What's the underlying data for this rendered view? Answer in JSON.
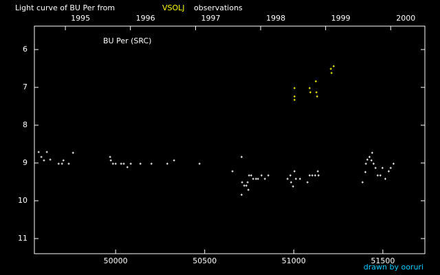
{
  "chart_data": {
    "type": "scatter",
    "title": "Light curve of BU Per from",
    "title_source": "VSOLJ",
    "title_source_color": "#ffff00",
    "title_tail": "observations",
    "label": "BU Per (SRC)",
    "credit": "drawn by ooruri",
    "credit_color": "#00ccff",
    "xlim": [
      49544,
      51736
    ],
    "xticks": [
      50000,
      50500,
      51000,
      51500
    ],
    "x2ticks": [
      {
        "value": 49718,
        "label": "1995"
      },
      {
        "value": 50083,
        "label": "1996"
      },
      {
        "value": 50449,
        "label": "1997"
      },
      {
        "value": 50814,
        "label": "1998"
      },
      {
        "value": 51179,
        "label": "1999"
      },
      {
        "value": 51544,
        "label": "2000"
      }
    ],
    "ylim": [
      11.4,
      5.38
    ],
    "yticks": [
      6,
      7,
      8,
      9,
      10,
      11
    ],
    "series": [
      {
        "color": "#ffffff",
        "x": [
          49568,
          49583,
          49598,
          49614,
          49633,
          49680,
          49699,
          49707,
          49737,
          49761,
          49969,
          49973,
          49985,
          50000,
          50031,
          50046,
          50066,
          50085,
          50139,
          50201,
          50290,
          50328,
          50471,
          50656,
          50707,
          50707,
          50710,
          50722,
          50734,
          50741,
          50745,
          50749,
          50761,
          50772,
          50788,
          50799,
          50819,
          50838,
          50857,
          50965,
          50981,
          50985,
          50996,
          51004,
          51012,
          51035,
          51077,
          51089,
          51104,
          51120,
          51135,
          51139,
          51386,
          51402,
          51405,
          51413,
          51425,
          51436,
          51440,
          51448,
          51459,
          51471,
          51486,
          51498,
          51514,
          51533,
          51544,
          51560
        ],
        "values": [
          8.71,
          8.84,
          8.93,
          8.71,
          8.91,
          9.02,
          9.02,
          8.93,
          9.02,
          8.73,
          8.84,
          8.93,
          9.02,
          9.02,
          9.02,
          9.02,
          9.11,
          9.02,
          9.02,
          9.02,
          9.02,
          8.93,
          9.02,
          9.22,
          8.84,
          9.84,
          9.51,
          9.6,
          9.6,
          9.51,
          9.71,
          9.33,
          9.33,
          9.42,
          9.42,
          9.42,
          9.33,
          9.42,
          9.33,
          9.42,
          9.33,
          9.51,
          9.62,
          9.22,
          9.42,
          9.42,
          9.51,
          9.33,
          9.33,
          9.33,
          9.22,
          9.33,
          9.51,
          9.24,
          9.02,
          8.91,
          8.84,
          8.93,
          8.73,
          9.02,
          9.13,
          9.33,
          9.33,
          9.13,
          9.42,
          9.22,
          9.13,
          9.02
        ]
      },
      {
        "color": "#ffff00",
        "x": [
          51004,
          51004,
          51004,
          51089,
          51093,
          51124,
          51127,
          51131,
          51208,
          51212,
          51224
        ],
        "values": [
          7.02,
          7.24,
          7.33,
          7.02,
          7.13,
          6.84,
          7.13,
          7.24,
          6.51,
          6.62,
          6.44
        ]
      }
    ]
  }
}
